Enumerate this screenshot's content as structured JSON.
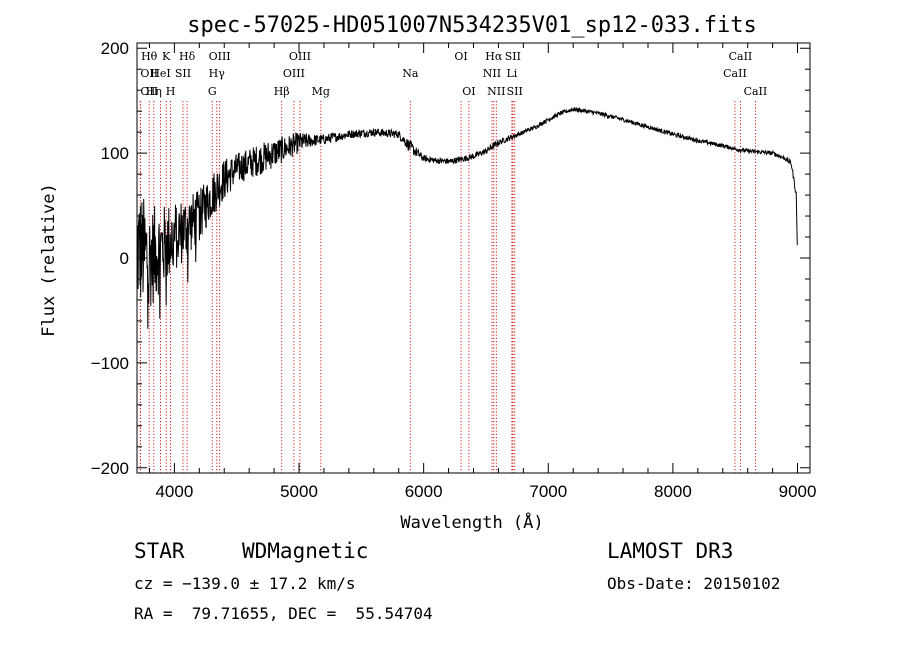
{
  "chart_data": {
    "type": "line",
    "title": "spec-57025-HD051007N534235V01_sp12-033.fits",
    "xlabel": "Wavelength (Å)",
    "ylabel": "Flux (relative)",
    "xlim": [
      3700,
      9100
    ],
    "ylim": [
      -205,
      205
    ],
    "xticks": [
      4000,
      5000,
      6000,
      7000,
      8000,
      9000
    ],
    "xtick_labels": [
      "4000",
      "5000",
      "6000",
      "7000",
      "8000",
      "9000"
    ],
    "yticks": [
      -200,
      -100,
      0,
      100,
      200
    ],
    "ytick_labels": [
      "−200",
      "−100",
      "0",
      "100",
      "200"
    ],
    "series": [
      {
        "name": "flux",
        "noise_note": "high-frequency noise drawn around the smooth continuum below",
        "x": [
          3700,
          3750,
          3800,
          3850,
          3900,
          3950,
          4000,
          4100,
          4200,
          4300,
          4400,
          4500,
          4600,
          4700,
          4800,
          4900,
          5000,
          5100,
          5200,
          5400,
          5600,
          5800,
          5900,
          6000,
          6100,
          6200,
          6300,
          6400,
          6500,
          6600,
          6700,
          6800,
          6900,
          7000,
          7100,
          7200,
          7300,
          7400,
          7600,
          7800,
          8000,
          8200,
          8400,
          8500,
          8600,
          8700,
          8800,
          8900,
          8950,
          8990,
          9000
        ],
        "y": [
          10,
          5,
          0,
          5,
          10,
          15,
          20,
          30,
          40,
          60,
          75,
          85,
          90,
          95,
          100,
          105,
          110,
          112,
          113,
          118,
          120,
          118,
          105,
          95,
          93,
          92,
          94,
          97,
          102,
          110,
          115,
          120,
          125,
          132,
          138,
          142,
          140,
          138,
          132,
          125,
          118,
          112,
          107,
          104,
          102,
          101,
          100,
          95,
          90,
          60,
          0
        ],
        "noise": [
          60,
          55,
          50,
          45,
          40,
          38,
          35,
          30,
          25,
          22,
          20,
          15,
          15,
          15,
          14,
          12,
          10,
          6,
          5,
          4,
          4,
          4,
          6,
          3,
          3,
          3,
          3,
          3,
          3,
          3,
          2.5,
          2,
          2,
          2,
          2,
          2,
          2,
          2,
          2,
          2,
          2,
          2,
          2,
          2,
          2,
          2,
          2,
          2,
          3,
          3,
          0
        ]
      }
    ],
    "spectral_lines": [
      {
        "label": "Hθ",
        "x": 3798,
        "row": 0,
        "anchor": "middle"
      },
      {
        "label": "OII",
        "x": 3727,
        "row": 1,
        "anchor": "start"
      },
      {
        "label": "OII",
        "x": 3727,
        "row": 2,
        "anchor": "start"
      },
      {
        "label": "Hη",
        "x": 3835,
        "row": 2,
        "anchor": "middle"
      },
      {
        "label": "K",
        "x": 3934,
        "row": 0,
        "anchor": "middle"
      },
      {
        "label": "HeI",
        "x": 3889,
        "row": 1,
        "anchor": "middle"
      },
      {
        "label": "H",
        "x": 3969,
        "row": 2,
        "anchor": "middle"
      },
      {
        "label": "Hδ",
        "x": 4102,
        "row": 0,
        "anchor": "middle"
      },
      {
        "label": "SII",
        "x": 4069,
        "row": 1,
        "anchor": "middle"
      },
      {
        "label": "OIII",
        "x": 4363,
        "row": 0,
        "anchor": "middle"
      },
      {
        "label": "Hγ",
        "x": 4340,
        "row": 1,
        "anchor": "middle"
      },
      {
        "label": "G",
        "x": 4304,
        "row": 2,
        "anchor": "middle"
      },
      {
        "label": "Hβ",
        "x": 4861,
        "row": 2,
        "anchor": "middle"
      },
      {
        "label": "OIII",
        "x": 5007,
        "row": 0,
        "anchor": "middle"
      },
      {
        "label": "OIII",
        "x": 4959,
        "row": 1,
        "anchor": "middle"
      },
      {
        "label": "Mg",
        "x": 5175,
        "row": 2,
        "anchor": "middle"
      },
      {
        "label": "Na",
        "x": 5893,
        "row": 1,
        "anchor": "middle"
      },
      {
        "label": "OI",
        "x": 6300,
        "row": 0,
        "anchor": "middle"
      },
      {
        "label": "OI",
        "x": 6363,
        "row": 2,
        "anchor": "middle"
      },
      {
        "label": "Hα",
        "x": 6563,
        "row": 0,
        "anchor": "middle"
      },
      {
        "label": "NII",
        "x": 6548,
        "row": 1,
        "anchor": "middle"
      },
      {
        "label": "NII",
        "x": 6583,
        "row": 2,
        "anchor": "middle"
      },
      {
        "label": "SII",
        "x": 6716,
        "row": 0,
        "anchor": "middle"
      },
      {
        "label": "Li",
        "x": 6708,
        "row": 1,
        "anchor": "middle"
      },
      {
        "label": "SII",
        "x": 6731,
        "row": 2,
        "anchor": "middle"
      },
      {
        "label": "CaII",
        "x": 8542,
        "row": 0,
        "anchor": "middle"
      },
      {
        "label": "CaII",
        "x": 8498,
        "row": 1,
        "anchor": "middle"
      },
      {
        "label": "CaII",
        "x": 8662,
        "row": 2,
        "anchor": "middle"
      }
    ]
  },
  "info": {
    "object_type": "STAR",
    "subclass": "WDMagnetic",
    "survey": "LAMOST DR3",
    "cz": "cz = −139.0 ± 17.2 km/s",
    "obs_date": "Obs-Date: 20150102",
    "coords": "RA =  79.71655, DEC =  55.54704"
  },
  "colors": {
    "spectrum": "#000000",
    "line_marker": "#cc0000",
    "axes": "#000000"
  }
}
